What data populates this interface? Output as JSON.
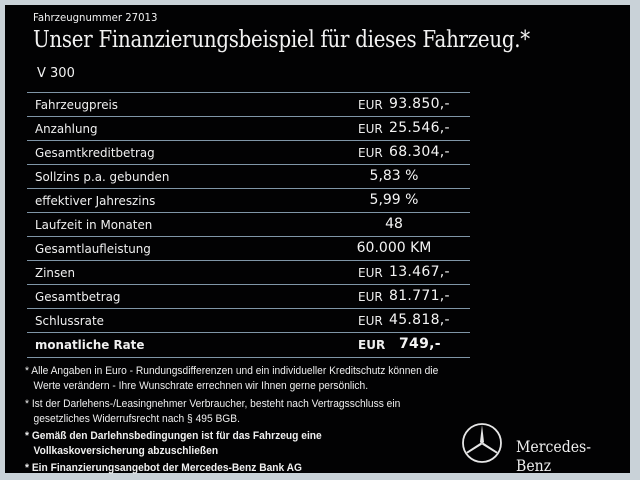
{
  "header": {
    "vehicle_number": "Fahrzeugnummer  27013",
    "title": "Unser Finanzierungsbeispiel für dieses Fahrzeug.*",
    "model": "V 300"
  },
  "table": {
    "rows": [
      {
        "label": "Fahrzeugpreis",
        "currency": "EUR",
        "value": "93.850,-"
      },
      {
        "label": "Anzahlung",
        "currency": "EUR",
        "value": "25.546,-"
      },
      {
        "label": "Gesamtkreditbetrag",
        "currency": "EUR",
        "value": "68.304,-"
      },
      {
        "label": "Sollzins p.a. gebunden",
        "value": "5,83 %"
      },
      {
        "label": "effektiver Jahreszins",
        "value": "5,99 %"
      },
      {
        "label": "Laufzeit in Monaten",
        "value": "48"
      },
      {
        "label": "Gesamtlaufleistung",
        "value": "60.000 KM"
      },
      {
        "label": "Zinsen",
        "currency": "EUR",
        "value": "13.467,-"
      },
      {
        "label": "Gesamtbetrag",
        "currency": "EUR",
        "value": "81.771,-"
      },
      {
        "label": "Schlussrate",
        "currency": "EUR",
        "value": "45.818,-"
      },
      {
        "label": "monatliche Rate",
        "currency": "EUR",
        "value": "749,-"
      }
    ]
  },
  "footnotes": [
    "* Alle Angaben in Euro - Rundungsdifferenzen und ein individueller Kreditschutz können die",
    "   Werte verändern - Ihre Wunschrate errechnen wir Ihnen gerne persönlich.",
    "* Ist der Darlehens-/Leasingnehmer Verbraucher, besteht nach Vertragsschluss ein",
    "   gesetzliches Widerrufsrecht nach § 495 BGB.",
    "* Gemäß den Darlehnsbedingungen ist für das Fahrzeug eine",
    "   Vollkaskoversicherung abzuschließen",
    "* Ein Finanzierungsangebot der Mercedes-Benz Bank AG"
  ],
  "brand": {
    "name": "Mercedes-Benz",
    "logo_icon": "mercedes-star-icon"
  },
  "colors": {
    "background": "#020203",
    "divider": "#7f95a6",
    "frame": "#c9d2d8"
  }
}
